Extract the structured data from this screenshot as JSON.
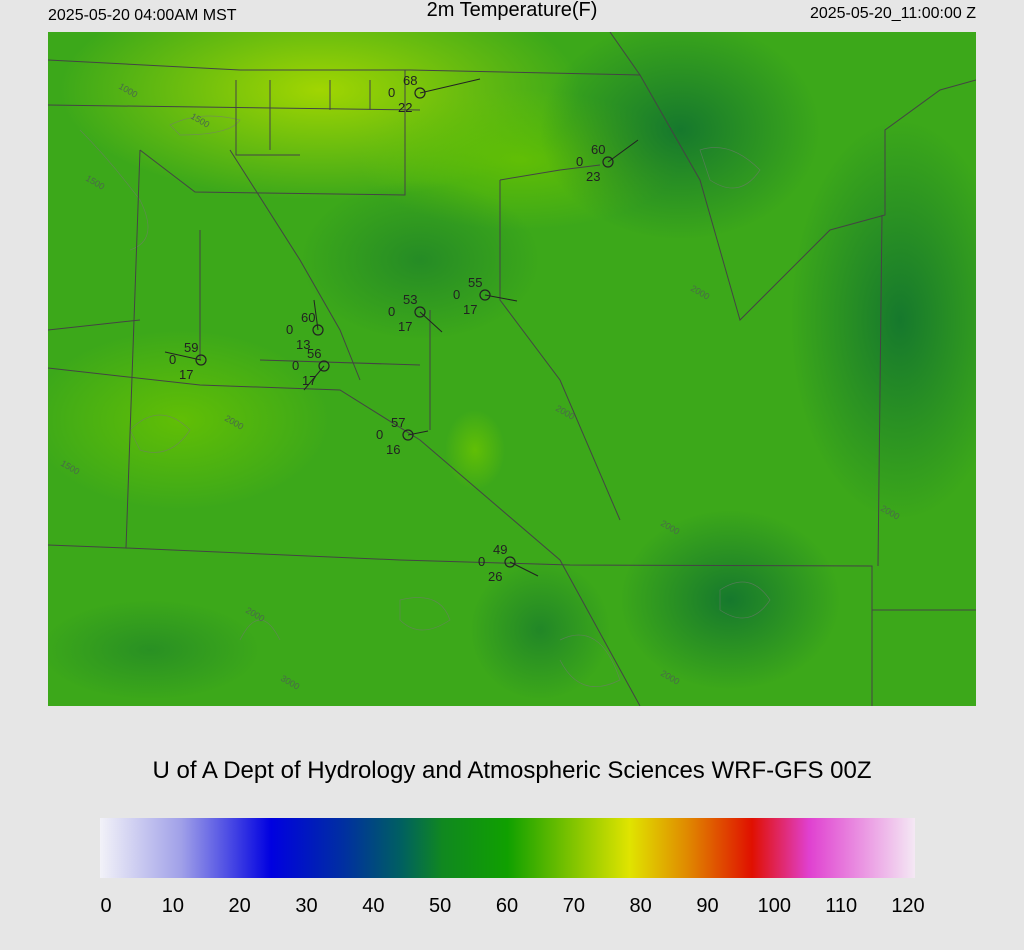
{
  "header": {
    "left": "2025-05-20 04:00AM MST",
    "title": "2m Temperature(F)",
    "right": "2025-05-20_11:00:00 Z"
  },
  "stations": [
    {
      "temperature": 68,
      "pressure": 0,
      "dewpoint": 22
    },
    {
      "temperature": 60,
      "pressure": 0,
      "dewpoint": 23
    },
    {
      "temperature": 55,
      "pressure": 0,
      "dewpoint": 17
    },
    {
      "temperature": 53,
      "pressure": 0,
      "dewpoint": 17
    },
    {
      "temperature": 60,
      "pressure": 0,
      "dewpoint": 13
    },
    {
      "temperature": 56,
      "pressure": 0,
      "dewpoint": 17
    },
    {
      "temperature": 59,
      "pressure": 0,
      "dewpoint": 17
    },
    {
      "temperature": 57,
      "pressure": 0,
      "dewpoint": 16
    },
    {
      "temperature": 49,
      "pressure": 0,
      "dewpoint": 26
    }
  ],
  "contour_labels": [
    "1000",
    "1500",
    "1500",
    "2000",
    "1500",
    "2000",
    "2000",
    "2000",
    "2000",
    "2000",
    "3000",
    "2000"
  ],
  "credit": "U of A Dept of Hydrology and Atmospheric Sciences WRF-GFS 00Z",
  "colorbar": {
    "ticks": [
      0,
      10,
      20,
      30,
      40,
      50,
      60,
      70,
      80,
      90,
      100,
      110,
      120
    ]
  }
}
